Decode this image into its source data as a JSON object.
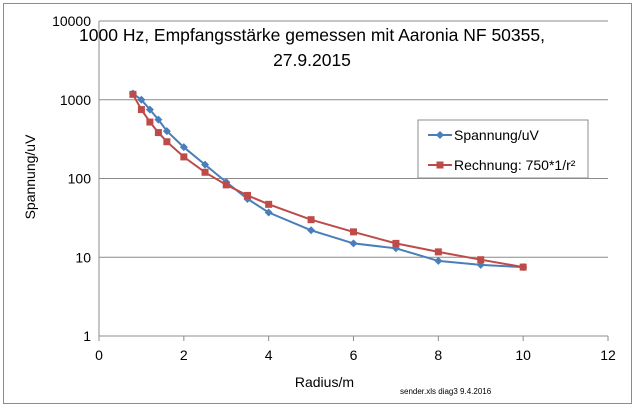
{
  "chart_data": {
    "type": "line",
    "title_lines": [
      "1000 Hz, Empfangsstärke gemessen mit Aaronia NF 50355,",
      "27.9.2015"
    ],
    "xlabel": "Radius/m",
    "ylabel": "Spannung/uV",
    "xlim": [
      0,
      12
    ],
    "ylim": [
      1,
      10000
    ],
    "yscale": "log",
    "x_ticks": [
      "0",
      "2",
      "4",
      "6",
      "8",
      "10",
      "12"
    ],
    "y_ticks": [
      "1",
      "10",
      "100",
      "1000",
      "10000"
    ],
    "grid": "horizontal",
    "legend_position": "right",
    "series": [
      {
        "name": "Spannung/uV",
        "color": "#4a7ebb",
        "marker": "diamond",
        "x": [
          0.8,
          1.0,
          1.2,
          1.4,
          1.6,
          2.0,
          2.5,
          3.0,
          3.5,
          4.0,
          5.0,
          6.0,
          7.0,
          8.0,
          9.0,
          10.0
        ],
        "y": [
          1200,
          1000,
          750,
          560,
          400,
          250,
          150,
          90,
          55,
          37,
          22,
          15,
          13,
          9,
          8,
          7.5
        ]
      },
      {
        "name": "Rechnung:  750*1/r²",
        "color": "#be4b48",
        "marker": "square",
        "x": [
          0.8,
          1.0,
          1.2,
          1.4,
          1.6,
          2.0,
          2.5,
          3.0,
          3.5,
          4.0,
          5.0,
          6.0,
          7.0,
          8.0,
          9.0,
          10.0
        ],
        "y": [
          1172,
          750,
          521,
          383,
          293,
          188,
          120,
          83,
          61,
          47,
          30,
          21,
          15,
          11.7,
          9.3,
          7.5
        ]
      }
    ],
    "footnote": "sender.xls diag3  9.4.2016"
  }
}
